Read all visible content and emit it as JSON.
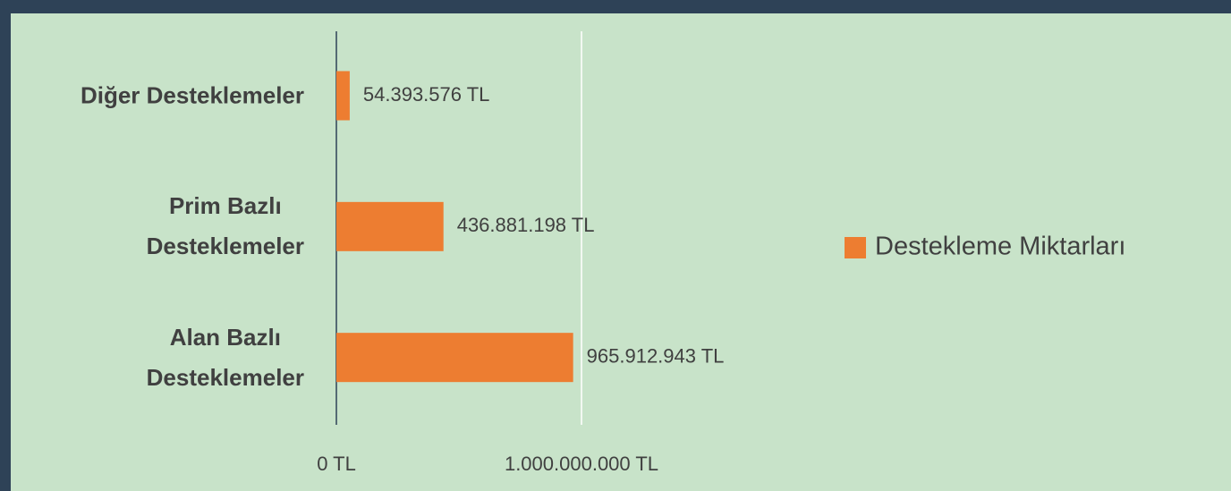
{
  "chart_data": {
    "type": "bar",
    "orientation": "horizontal",
    "categories": [
      "Diğer Desteklemeler",
      "Prim Bazlı\nDesteklemeler",
      "Alan Bazlı\nDesteklemeler"
    ],
    "series": [
      {
        "name": "Destekleme Miktarları",
        "color": "#ed7d31",
        "values": [
          54393576,
          436881198,
          965912943
        ],
        "value_labels": [
          "54.393.576 TL",
          "436.881.198 TL",
          "965.912.943 TL"
        ]
      }
    ],
    "xlim": [
      0,
      1000000000
    ],
    "xticks": [
      {
        "value": 0,
        "label": "0 TL"
      },
      {
        "value": 1000000000,
        "label": "1.000.000.000 TL"
      }
    ],
    "grid": true,
    "legend": "right"
  }
}
